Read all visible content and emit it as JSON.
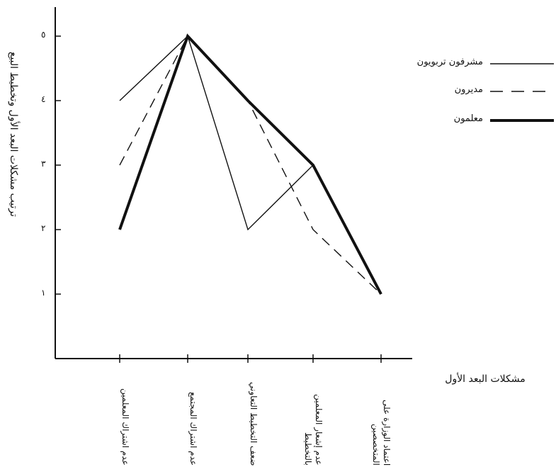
{
  "chart_data": {
    "type": "line",
    "title": "",
    "ylabel": "ترتيب مشكلات البعد الأول وتخطيط البيع",
    "xlabel": "مشكلات البعد الأول",
    "ylim": [
      0,
      5.4
    ],
    "yticks": [
      {
        "value": 1,
        "label": "١"
      },
      {
        "value": 2,
        "label": "٢"
      },
      {
        "value": 3,
        "label": "٣"
      },
      {
        "value": 4,
        "label": "٤"
      },
      {
        "value": 5,
        "label": "٥"
      }
    ],
    "categories": [
      "عدم اشتراك المعلمين",
      "عدم اشتراك المجتمع",
      "ضعف التخطيط التعاوني",
      "عدم إشعار المعلمين بالتخطيط",
      "اعتماد الوزارة على المتخصصين"
    ],
    "series": [
      {
        "name": "مشرفون تربويون",
        "style": "thin",
        "color": "#111111",
        "values": [
          4,
          5,
          2,
          3,
          1
        ]
      },
      {
        "name": "مديرون",
        "style": "dashed",
        "color": "#111111",
        "values": [
          3,
          5,
          4,
          2,
          1
        ]
      },
      {
        "name": "معلمون",
        "style": "thick",
        "color": "#111111",
        "values": [
          2,
          5,
          4,
          3,
          1
        ]
      }
    ],
    "grid": false,
    "legend_position": "top-right"
  }
}
